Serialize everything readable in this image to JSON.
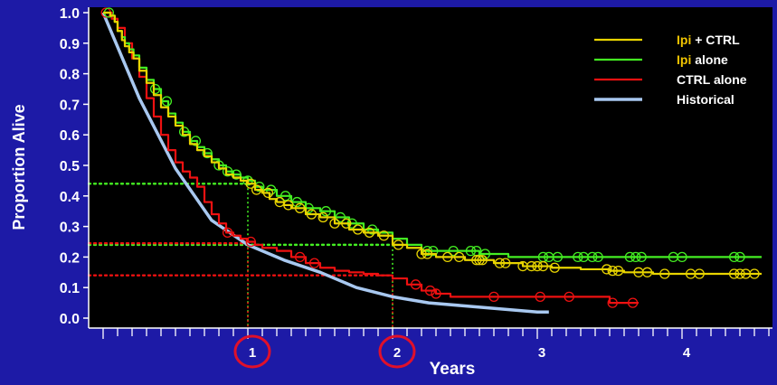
{
  "chart_data": {
    "type": "line",
    "title": "",
    "xlabel": "Years",
    "ylabel": "Proportion Alive",
    "xlim": [
      0,
      4.6
    ],
    "ylim": [
      -0.01,
      1.02
    ],
    "x_ticks": [
      {
        "value": 1,
        "label": "1",
        "circled": true
      },
      {
        "value": 2,
        "label": "2",
        "circled": true
      },
      {
        "value": 3,
        "label": "3",
        "circled": false
      },
      {
        "value": 4,
        "label": "4",
        "circled": false
      }
    ],
    "x_minor_step": 0.1,
    "y_ticks": [
      "0.0",
      "0.1",
      "0.2",
      "0.3",
      "0.4",
      "0.5",
      "0.6",
      "0.7",
      "0.8",
      "0.9",
      "1.0"
    ],
    "grid": false,
    "legend_position": "top-right",
    "colors": {
      "background": "#1d1aa6",
      "plot_area": "#000000",
      "text": "#ffffff",
      "ipi_highlight": "#f0c400",
      "highlight_circle": "#e0102a"
    },
    "legend": [
      {
        "series": "ipi_ctrl",
        "prefix": "Ipi",
        "suffix": " + CTRL"
      },
      {
        "series": "ipi_alone",
        "prefix": "Ipi",
        "suffix": " alone"
      },
      {
        "series": "ctrl_alone",
        "prefix": "",
        "suffix": "CTRL alone"
      },
      {
        "series": "historical",
        "prefix": "",
        "suffix": "Historical"
      }
    ],
    "series": [
      {
        "key": "ipi_ctrl",
        "name": "Ipi + CTRL",
        "color": "#e8d400",
        "step": true,
        "x": [
          0,
          0.02,
          0.05,
          0.08,
          0.1,
          0.13,
          0.15,
          0.18,
          0.21,
          0.25,
          0.3,
          0.35,
          0.4,
          0.45,
          0.5,
          0.55,
          0.6,
          0.65,
          0.7,
          0.75,
          0.8,
          0.85,
          0.9,
          0.95,
          1.0,
          1.05,
          1.1,
          1.15,
          1.2,
          1.25,
          1.3,
          1.4,
          1.5,
          1.6,
          1.7,
          1.8,
          1.9,
          2.0,
          2.1,
          2.2,
          2.3,
          2.5,
          2.7,
          2.8,
          2.9,
          3.0,
          3.1,
          3.3,
          3.5,
          3.6,
          3.8,
          4.0,
          4.2,
          4.4,
          4.55
        ],
        "y": [
          1.0,
          1.0,
          0.99,
          0.97,
          0.94,
          0.91,
          0.89,
          0.87,
          0.85,
          0.81,
          0.77,
          0.73,
          0.69,
          0.66,
          0.63,
          0.6,
          0.57,
          0.55,
          0.53,
          0.51,
          0.49,
          0.47,
          0.46,
          0.45,
          0.44,
          0.42,
          0.41,
          0.39,
          0.38,
          0.37,
          0.36,
          0.34,
          0.33,
          0.31,
          0.29,
          0.28,
          0.27,
          0.24,
          0.23,
          0.21,
          0.2,
          0.19,
          0.18,
          0.18,
          0.17,
          0.17,
          0.165,
          0.16,
          0.155,
          0.15,
          0.145,
          0.145,
          0.145,
          0.145,
          0.145
        ],
        "censor": [
          1.02,
          1.06,
          1.14,
          1.22,
          1.28,
          1.36,
          1.44,
          1.52,
          1.6,
          1.68,
          1.76,
          1.84,
          1.94,
          2.04,
          2.2,
          2.24,
          2.38,
          2.46,
          2.58,
          2.6,
          2.62,
          2.74,
          2.78,
          2.9,
          2.96,
          3.0,
          3.04,
          3.12,
          3.48,
          3.52,
          3.56,
          3.7,
          3.76,
          3.88,
          4.06,
          4.12,
          4.36,
          4.4,
          4.44,
          4.5
        ]
      },
      {
        "key": "ipi_alone",
        "name": "Ipi alone",
        "color": "#44ee22",
        "step": true,
        "x": [
          0,
          0.02,
          0.05,
          0.08,
          0.1,
          0.13,
          0.15,
          0.18,
          0.21,
          0.25,
          0.3,
          0.35,
          0.4,
          0.45,
          0.5,
          0.55,
          0.6,
          0.65,
          0.7,
          0.75,
          0.8,
          0.85,
          0.9,
          0.95,
          1.0,
          1.05,
          1.1,
          1.2,
          1.3,
          1.4,
          1.5,
          1.6,
          1.7,
          1.8,
          1.9,
          2.0,
          2.1,
          2.2,
          2.4,
          2.6,
          2.8,
          3.0,
          3.5,
          4.0,
          4.55
        ],
        "y": [
          1.0,
          1.0,
          0.99,
          0.97,
          0.94,
          0.92,
          0.9,
          0.88,
          0.86,
          0.82,
          0.78,
          0.75,
          0.71,
          0.67,
          0.64,
          0.61,
          0.58,
          0.56,
          0.54,
          0.52,
          0.5,
          0.48,
          0.47,
          0.46,
          0.45,
          0.43,
          0.42,
          0.4,
          0.38,
          0.36,
          0.35,
          0.33,
          0.31,
          0.29,
          0.28,
          0.26,
          0.24,
          0.22,
          0.22,
          0.21,
          0.2,
          0.2,
          0.2,
          0.2,
          0.2
        ],
        "censor": [
          0.04,
          0.36,
          0.44,
          0.56,
          0.64,
          0.72,
          0.8,
          0.86,
          0.92,
          1.0,
          1.08,
          1.16,
          1.26,
          1.34,
          1.42,
          1.54,
          1.64,
          1.72,
          1.86,
          2.24,
          2.28,
          2.42,
          2.54,
          2.58,
          2.64,
          3.04,
          3.08,
          3.14,
          3.28,
          3.32,
          3.38,
          3.42,
          3.64,
          3.68,
          3.72,
          3.94,
          4.0,
          4.36,
          4.4
        ]
      },
      {
        "key": "ctrl_alone",
        "name": "CTRL alone",
        "color": "#ee1111",
        "step": true,
        "x": [
          0,
          0.02,
          0.06,
          0.1,
          0.15,
          0.2,
          0.25,
          0.3,
          0.35,
          0.4,
          0.45,
          0.5,
          0.55,
          0.6,
          0.65,
          0.7,
          0.75,
          0.8,
          0.85,
          0.9,
          0.95,
          1.0,
          1.05,
          1.1,
          1.2,
          1.3,
          1.4,
          1.5,
          1.6,
          1.7,
          1.8,
          1.9,
          2.0,
          2.1,
          2.2,
          2.3,
          2.4,
          2.8,
          3.2,
          3.5,
          3.7
        ],
        "y": [
          1.0,
          1.0,
          0.98,
          0.95,
          0.9,
          0.85,
          0.79,
          0.72,
          0.66,
          0.6,
          0.55,
          0.51,
          0.48,
          0.46,
          0.43,
          0.38,
          0.34,
          0.31,
          0.28,
          0.27,
          0.26,
          0.25,
          0.24,
          0.23,
          0.22,
          0.2,
          0.18,
          0.165,
          0.155,
          0.15,
          0.145,
          0.14,
          0.13,
          0.11,
          0.09,
          0.08,
          0.07,
          0.07,
          0.07,
          0.05,
          0.05
        ],
        "censor": [
          0.02,
          0.86,
          1.02,
          1.36,
          1.46,
          2.16,
          2.26,
          2.3,
          2.7,
          3.02,
          3.22,
          3.52,
          3.66
        ]
      },
      {
        "key": "historical",
        "name": "Historical",
        "color": "#a8c8f0",
        "step": false,
        "x": [
          0,
          0.25,
          0.5,
          0.75,
          1.0,
          1.25,
          1.5,
          1.75,
          2.0,
          2.25,
          2.5,
          2.75,
          3.0,
          3.08
        ],
        "y": [
          1.0,
          0.72,
          0.49,
          0.32,
          0.24,
          0.19,
          0.15,
          0.1,
          0.07,
          0.05,
          0.04,
          0.03,
          0.02,
          0.02
        ]
      }
    ],
    "reference_lines": [
      {
        "color": "#44ee22",
        "x": 1,
        "y": 0.44
      },
      {
        "color": "#44ee22",
        "x": 2,
        "y": 0.24
      },
      {
        "color": "#ee1111",
        "x": 1,
        "y": 0.245
      },
      {
        "color": "#ee1111",
        "x": 2,
        "y": 0.14
      }
    ]
  }
}
